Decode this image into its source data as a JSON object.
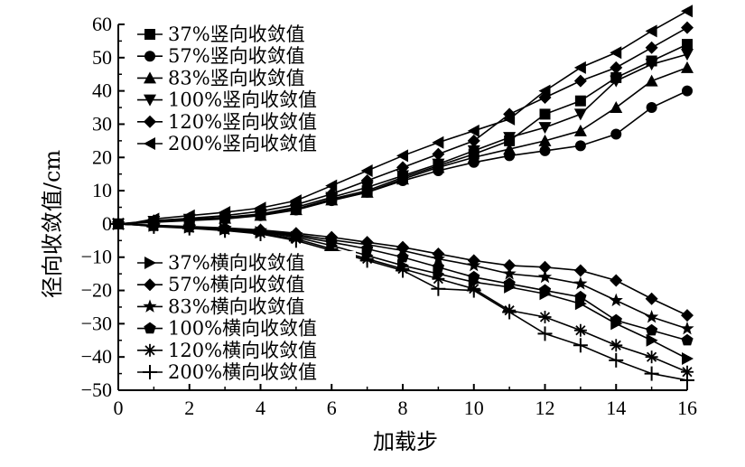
{
  "chart_data": {
    "type": "line",
    "title": "",
    "xlabel": "加载步",
    "ylabel": "径向收敛值/cm",
    "xlim": [
      0,
      16
    ],
    "ylim": [
      -50,
      60
    ],
    "xticks": [
      0,
      2,
      4,
      6,
      8,
      10,
      12,
      14,
      16
    ],
    "yticks": [
      60,
      50,
      40,
      30,
      20,
      10,
      0,
      -10,
      -20,
      -30,
      -40,
      -50
    ],
    "grid": false,
    "legend_placement": [
      "top-left",
      "bottom-left"
    ],
    "x": [
      0,
      0.5,
      1,
      2,
      3,
      4,
      5,
      6,
      7,
      8,
      9,
      10,
      11,
      12,
      13,
      14,
      15,
      16
    ],
    "series": [
      {
        "name": "37%竖向收敛值",
        "marker": "square",
        "values": [
          0,
          0.3,
          0.7,
          1.2,
          1.8,
          2.8,
          4.5,
          7.5,
          10,
          14,
          17.5,
          21,
          25,
          33,
          37,
          44,
          49,
          54
        ]
      },
      {
        "name": "57%竖向收敛值",
        "marker": "circle",
        "values": [
          0,
          0.2,
          0.5,
          1.0,
          1.5,
          2.5,
          4.2,
          7.0,
          9.5,
          13,
          16,
          18.5,
          20.5,
          22,
          23.5,
          27,
          35,
          40
        ]
      },
      {
        "name": "83%竖向收敛值",
        "marker": "triangle-up",
        "values": [
          0,
          0.3,
          0.6,
          1.1,
          1.7,
          2.6,
          4.3,
          7.2,
          9.5,
          13.5,
          17,
          20,
          22.5,
          25,
          28,
          35,
          43,
          47
        ]
      },
      {
        "name": "100%竖向收敛值",
        "marker": "triangle-down",
        "values": [
          0,
          0.3,
          0.8,
          1.4,
          2.0,
          3.0,
          5.0,
          8.0,
          11,
          14.5,
          18,
          22,
          26,
          29,
          33,
          43,
          48,
          51
        ]
      },
      {
        "name": "120%竖向收敛值",
        "marker": "diamond",
        "values": [
          0,
          0.4,
          1.0,
          1.7,
          2.5,
          3.8,
          5.8,
          9.0,
          13,
          17,
          21,
          25,
          33,
          38,
          43,
          47,
          53,
          59
        ]
      },
      {
        "name": "200%竖向收敛值",
        "marker": "triangle-left",
        "values": [
          0,
          0.5,
          1.5,
          2.5,
          3.5,
          4.8,
          7.0,
          11.5,
          16,
          20.5,
          24.5,
          28,
          31.5,
          40,
          47,
          51.5,
          58,
          64
        ]
      },
      {
        "name": "37%横向收敛值",
        "marker": "triangle-right",
        "values": [
          0,
          -0.2,
          -0.5,
          -1.0,
          -1.6,
          -2.5,
          -4.0,
          -6.5,
          -9.5,
          -12.5,
          -15,
          -17.5,
          -19,
          -21,
          -24,
          -30,
          -35,
          -40.5
        ]
      },
      {
        "name": "57%横向收敛值",
        "marker": "diamond",
        "values": [
          0,
          -0.2,
          -0.4,
          -0.8,
          -1.2,
          -1.8,
          -2.8,
          -4.0,
          -5.5,
          -7.0,
          -9.0,
          -11,
          -12.5,
          -13,
          -14,
          -17,
          -22.5,
          -27.5
        ]
      },
      {
        "name": "83%横向收敛值",
        "marker": "star",
        "values": [
          0,
          -0.2,
          -0.4,
          -0.9,
          -1.3,
          -2.0,
          -3.2,
          -4.8,
          -6.2,
          -8.0,
          -10.5,
          -12.5,
          -15,
          -16,
          -18,
          -23,
          -28,
          -31.5
        ]
      },
      {
        "name": "100%横向收敛值",
        "marker": "pentagon",
        "values": [
          0,
          -0.3,
          -0.6,
          -1.0,
          -1.5,
          -2.2,
          -3.6,
          -5.5,
          -7.5,
          -10,
          -13,
          -16,
          -18,
          -20,
          -22,
          -29,
          -32,
          -35
        ]
      },
      {
        "name": "120%横向收敛值",
        "marker": "asterisk",
        "values": [
          0,
          -0.3,
          -0.7,
          -1.2,
          -1.8,
          -2.8,
          -4.5,
          -7.5,
          -10.5,
          -13.5,
          -16.5,
          -19.5,
          -26,
          -28,
          -32,
          -36.5,
          -40,
          -44.5
        ]
      },
      {
        "name": "200%横向收敛值",
        "marker": "plus",
        "values": [
          0,
          -0.3,
          -0.8,
          -1.3,
          -2.0,
          -3.0,
          -5.0,
          -8.0,
          -11,
          -14,
          -19.5,
          -20,
          -26.5,
          -33,
          -36.5,
          -41,
          -45,
          -47
        ]
      }
    ]
  }
}
